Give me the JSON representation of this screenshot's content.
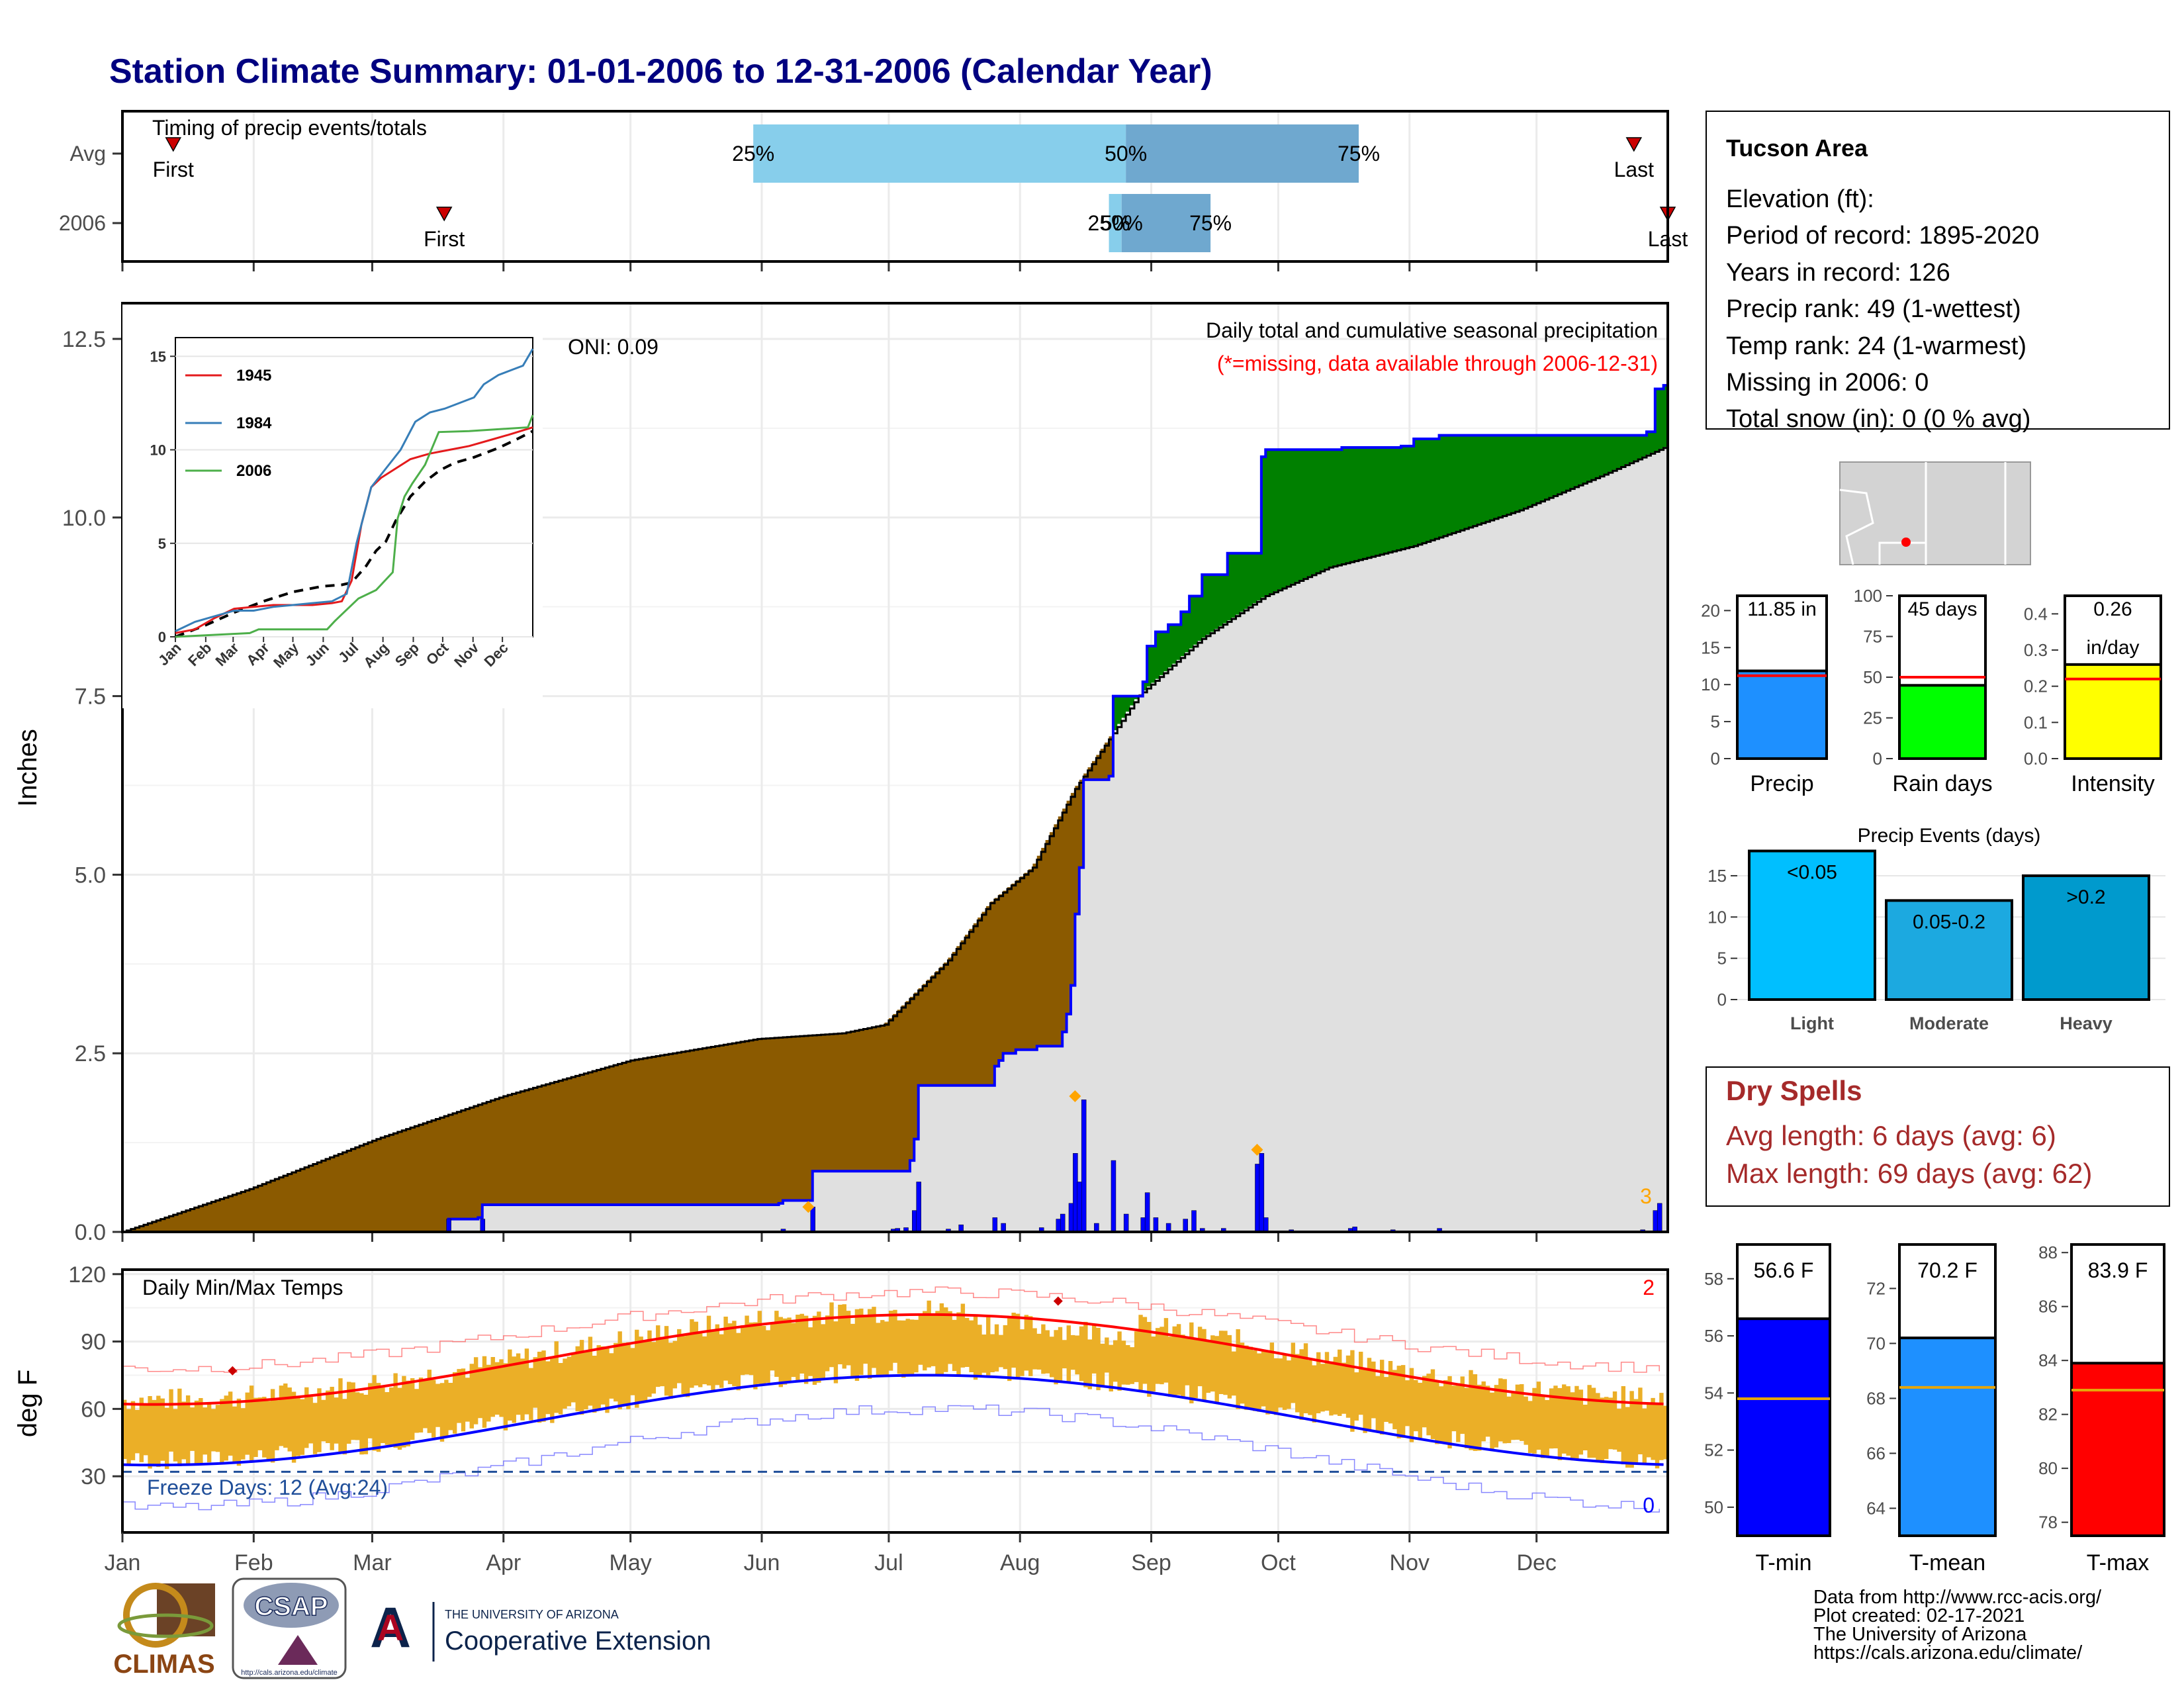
{
  "title": "Station Climate Summary: 01-01-2006 to 12-31-2006 (Calendar Year)",
  "colors": {
    "title": "#000080",
    "drought": "#8B5A00",
    "surplus": "#008000",
    "normal_fill": "#E0E0E0",
    "obs_line": "#0000FF",
    "events": "#FFA500",
    "temp_bar": "#EBAF27",
    "avg_max": "#FF0000",
    "avg_min": "#0000FF",
    "dry_spells": "#A52A2A"
  },
  "months": [
    "Jan",
    "Feb",
    "Mar",
    "Apr",
    "May",
    "Jun",
    "Jul",
    "Aug",
    "Sep",
    "Oct",
    "Nov",
    "Dec"
  ],
  "timing": {
    "label": "Timing of precip events/totals",
    "rows": [
      {
        "name": "Avg",
        "first_label": "First",
        "last_label": "Last",
        "first_doy": 12,
        "last_doy": 357,
        "q25": 149,
        "q50": 237,
        "q75": 292
      },
      {
        "name": "2006",
        "first_label": "First",
        "last_label": "Last",
        "first_doy": 76,
        "last_doy": 365,
        "q25": 233,
        "q50": 236,
        "q75": 257
      }
    ],
    "q_labels": [
      "25%",
      "50%",
      "75%"
    ]
  },
  "precip": {
    "ylabel": "Inches",
    "yticks": [
      "0.0",
      "2.5",
      "5.0",
      "7.5",
      "10.0",
      "12.5"
    ],
    "ymax": 13,
    "title_line1": "Daily total and cumulative seasonal precipitation",
    "title_line2": "(*=missing, data available through 2006-12-31)",
    "oni": "ONI: 0.09",
    "normal_knots": [
      [
        0,
        0
      ],
      [
        30,
        0.6
      ],
      [
        60,
        1.3
      ],
      [
        90,
        1.9
      ],
      [
        120,
        2.4
      ],
      [
        150,
        2.7
      ],
      [
        170,
        2.78
      ],
      [
        180,
        2.9
      ],
      [
        195,
        3.8
      ],
      [
        205,
        4.6
      ],
      [
        215,
        5.1
      ],
      [
        225,
        6.2
      ],
      [
        240,
        7.5
      ],
      [
        255,
        8.3
      ],
      [
        270,
        8.9
      ],
      [
        285,
        9.3
      ],
      [
        305,
        9.6
      ],
      [
        330,
        10.1
      ],
      [
        350,
        10.6
      ],
      [
        365,
        11.0
      ]
    ],
    "obs_steps": [
      [
        76,
        0
      ],
      [
        77,
        0.18
      ],
      [
        84,
        0.2
      ],
      [
        85,
        0.38
      ],
      [
        155,
        0.4
      ],
      [
        156,
        0.44
      ],
      [
        162,
        0.44
      ],
      [
        163,
        0.85
      ],
      [
        185,
        0.85
      ],
      [
        186,
        1.0
      ],
      [
        187,
        1.3
      ],
      [
        188,
        2.05
      ],
      [
        205,
        2.05
      ],
      [
        206,
        2.32
      ],
      [
        207,
        2.4
      ],
      [
        208,
        2.5
      ],
      [
        210,
        2.5
      ],
      [
        211,
        2.55
      ],
      [
        216,
        2.6
      ],
      [
        222,
        2.8
      ],
      [
        223,
        3.05
      ],
      [
        224,
        3.45
      ],
      [
        225,
        4.45
      ],
      [
        226,
        5.1
      ],
      [
        227,
        6.33
      ],
      [
        233,
        6.38
      ],
      [
        234,
        7.5
      ],
      [
        240,
        7.5
      ],
      [
        241,
        7.7
      ],
      [
        242,
        8.2
      ],
      [
        244,
        8.4
      ],
      [
        247,
        8.5
      ],
      [
        250,
        8.68
      ],
      [
        252,
        8.9
      ],
      [
        255,
        9.2
      ],
      [
        260,
        9.2
      ],
      [
        261,
        9.5
      ],
      [
        268,
        9.5
      ],
      [
        269,
        10.85
      ],
      [
        270,
        10.95
      ],
      [
        288,
        10.98
      ],
      [
        300,
        10.98
      ],
      [
        302,
        11.0
      ],
      [
        305,
        11.1
      ],
      [
        311,
        11.15
      ],
      [
        330,
        11.15
      ],
      [
        360,
        11.2
      ],
      [
        362,
        11.8
      ],
      [
        364,
        11.85
      ]
    ],
    "daily": [
      [
        77,
        0.18
      ],
      [
        85,
        0.18
      ],
      [
        156,
        0.04
      ],
      [
        163,
        0.35
      ],
      [
        182,
        0.04
      ],
      [
        183,
        0.05
      ],
      [
        185,
        0.06
      ],
      [
        187,
        0.3
      ],
      [
        188,
        0.7
      ],
      [
        195,
        0.04
      ],
      [
        198,
        0.1
      ],
      [
        206,
        0.2
      ],
      [
        208,
        0.12
      ],
      [
        217,
        0.06
      ],
      [
        221,
        0.18
      ],
      [
        222,
        0.25
      ],
      [
        224,
        0.4
      ],
      [
        225,
        1.1
      ],
      [
        226,
        0.7
      ],
      [
        227,
        1.85
      ],
      [
        230,
        0.12
      ],
      [
        234,
        1.0
      ],
      [
        237,
        0.25
      ],
      [
        241,
        0.2
      ],
      [
        242,
        0.55
      ],
      [
        244,
        0.2
      ],
      [
        247,
        0.12
      ],
      [
        251,
        0.18
      ],
      [
        253,
        0.3
      ],
      [
        255,
        0.05
      ],
      [
        260,
        0.05
      ],
      [
        268,
        0.95
      ],
      [
        269,
        1.1
      ],
      [
        270,
        0.2
      ],
      [
        276,
        0.03
      ],
      [
        290,
        0.05
      ],
      [
        291,
        0.07
      ],
      [
        300,
        0.03
      ],
      [
        311,
        0.05
      ],
      [
        359,
        0.03
      ],
      [
        362,
        0.3
      ],
      [
        363,
        0.4
      ]
    ],
    "event_markers": [
      [
        162,
        0.35
      ],
      [
        225,
        1.9
      ],
      [
        268,
        1.15
      ]
    ],
    "count_label": "3"
  },
  "inset": {
    "years": [
      {
        "name": "1945",
        "color": "#E41A1C",
        "pts": [
          [
            0,
            0.2
          ],
          [
            20,
            0.4
          ],
          [
            40,
            1.0
          ],
          [
            60,
            1.5
          ],
          [
            80,
            1.6
          ],
          [
            100,
            1.7
          ],
          [
            120,
            1.7
          ],
          [
            140,
            1.7
          ],
          [
            160,
            1.8
          ],
          [
            170,
            1.9
          ],
          [
            180,
            3.0
          ],
          [
            190,
            6.0
          ],
          [
            200,
            8.0
          ],
          [
            210,
            8.5
          ],
          [
            225,
            9.0
          ],
          [
            240,
            9.5
          ],
          [
            260,
            9.8
          ],
          [
            280,
            10.0
          ],
          [
            300,
            10.2
          ],
          [
            320,
            10.5
          ],
          [
            340,
            10.8
          ],
          [
            365,
            11.2
          ]
        ]
      },
      {
        "name": "1984",
        "color": "#377EB8",
        "pts": [
          [
            0,
            0.3
          ],
          [
            20,
            0.8
          ],
          [
            40,
            1.1
          ],
          [
            60,
            1.4
          ],
          [
            80,
            1.4
          ],
          [
            100,
            1.6
          ],
          [
            120,
            1.7
          ],
          [
            140,
            1.8
          ],
          [
            160,
            1.9
          ],
          [
            175,
            2.3
          ],
          [
            185,
            5.0
          ],
          [
            200,
            8.0
          ],
          [
            215,
            9.0
          ],
          [
            230,
            10.0
          ],
          [
            245,
            11.5
          ],
          [
            260,
            12.0
          ],
          [
            275,
            12.2
          ],
          [
            290,
            12.5
          ],
          [
            305,
            12.8
          ],
          [
            315,
            13.5
          ],
          [
            330,
            14.0
          ],
          [
            345,
            14.3
          ],
          [
            355,
            14.5
          ],
          [
            365,
            15.4
          ]
        ]
      },
      {
        "name": "2006",
        "color": "#4DAF4A",
        "pts": [
          [
            0,
            0
          ],
          [
            76,
            0.2
          ],
          [
            85,
            0.4
          ],
          [
            155,
            0.4
          ],
          [
            163,
            0.85
          ],
          [
            187,
            2.05
          ],
          [
            205,
            2.5
          ],
          [
            222,
            3.45
          ],
          [
            227,
            6.33
          ],
          [
            234,
            7.5
          ],
          [
            242,
            8.2
          ],
          [
            255,
            9.2
          ],
          [
            269,
            10.95
          ],
          [
            300,
            11.0
          ],
          [
            360,
            11.2
          ],
          [
            365,
            11.85
          ]
        ]
      }
    ],
    "normal_pts": [
      [
        0,
        0
      ],
      [
        30,
        0.6
      ],
      [
        60,
        1.3
      ],
      [
        90,
        1.9
      ],
      [
        120,
        2.4
      ],
      [
        150,
        2.7
      ],
      [
        170,
        2.78
      ],
      [
        180,
        2.9
      ],
      [
        195,
        3.8
      ],
      [
        205,
        4.6
      ],
      [
        215,
        5.1
      ],
      [
        225,
        6.2
      ],
      [
        240,
        7.5
      ],
      [
        255,
        8.3
      ],
      [
        270,
        8.9
      ],
      [
        285,
        9.3
      ],
      [
        305,
        9.6
      ],
      [
        330,
        10.1
      ],
      [
        350,
        10.6
      ],
      [
        365,
        11.0
      ]
    ],
    "yticks": [
      "0",
      "5",
      "10",
      "15"
    ],
    "months": [
      "Jan",
      "Feb",
      "Mar",
      "Apr",
      "May",
      "Jun",
      "Jul",
      "Aug",
      "Sep",
      "Oct",
      "Nov",
      "Dec"
    ]
  },
  "temps": {
    "ylabel": "deg F",
    "label": "Daily Min/Max Temps",
    "yticks": [
      "30",
      "60",
      "90",
      "120"
    ],
    "ylim": [
      5,
      122
    ],
    "freeze_line": 32,
    "freeze_label": "Freeze Days: 12 (Avg:24)",
    "count_hot": "2",
    "count_cold": "0",
    "markers": [
      [
        26,
        77
      ],
      [
        221,
        108
      ]
    ]
  },
  "station": {
    "name": "Tucson Area",
    "lines": [
      "Elevation (ft):",
      "Period of record: 1895-2020",
      "Years in record: 126",
      "Precip rank: 49 (1-wettest)",
      "Temp rank: 24 (1-warmest)",
      "Missing in 2006: 0",
      "Total snow (in): 0 (0 % avg)"
    ]
  },
  "small_bars": [
    {
      "id": "precip",
      "label": "Precip",
      "value": 11.85,
      "value_label": "11.85 in",
      "avg": 11.2,
      "color": "#1E90FF",
      "yticks": [
        "0",
        "5",
        "10",
        "15",
        "20"
      ],
      "ymax": 22
    },
    {
      "id": "rain",
      "label": "Rain days",
      "value": 45,
      "value_label": "45 days",
      "avg": 50,
      "color": "#00FF00",
      "yticks": [
        "0",
        "25",
        "50",
        "75",
        "100"
      ],
      "ymax": 100
    },
    {
      "id": "intensity",
      "label": "Intensity",
      "value": 0.26,
      "value_label": "0.26\nin/day",
      "avg": 0.22,
      "color": "#FFFF00",
      "yticks": [
        "0.0",
        "0.1",
        "0.2",
        "0.3",
        "0.4"
      ],
      "ymax": 0.45
    }
  ],
  "events": {
    "title": "Precip Events (days)",
    "yticks": [
      "0",
      "5",
      "10",
      "15"
    ],
    "ymax": 17,
    "bars": [
      {
        "label": "Light",
        "value": 18,
        "cat": "<0.05",
        "color": "#00BFFF"
      },
      {
        "label": "Moderate",
        "value": 12,
        "cat": "0.05-0.2",
        "color": "#1CA9E0"
      },
      {
        "label": "Heavy",
        "value": 15,
        "cat": ">0.2",
        "color": "#009ACD"
      }
    ]
  },
  "dry_spells": {
    "title": "Dry Spells",
    "line1": "Avg length: 6 days (avg: 6)",
    "line2": "Max length: 69 days (avg: 62)"
  },
  "temp_bars": [
    {
      "label": "T-min",
      "value": 56.6,
      "value_label": "56.6 F",
      "avg": 53.8,
      "color": "#0000FF",
      "yticks": [
        "50",
        "52",
        "54",
        "56",
        "58"
      ],
      "ymin": 49,
      "ymax": 59.2
    },
    {
      "label": "T-mean",
      "value": 70.2,
      "value_label": "70.2 F",
      "avg": 68.4,
      "color": "#1E90FF",
      "yticks": [
        "64",
        "66",
        "68",
        "70",
        "72"
      ],
      "ymin": 63,
      "ymax": 73.6
    },
    {
      "label": "T-max",
      "value": 83.9,
      "value_label": "83.9 F",
      "avg": 82.9,
      "color": "#FF0000",
      "yticks": [
        "78",
        "80",
        "82",
        "84",
        "86",
        "88"
      ],
      "ymin": 77.5,
      "ymax": 88.3
    }
  ],
  "footer": {
    "lines": [
      "Data from http://www.rcc-acis.org/",
      "Plot created: 02-17-2021",
      "The University of Arizona",
      "https://cals.arizona.edu/climate/"
    ],
    "logos": {
      "climas": "CLIMAS",
      "csap": "CSAP",
      "csap_url": "http://cals.arizona.edu/climate",
      "ua_top": "THE UNIVERSITY OF ARIZONA",
      "ua_bottom": "Cooperative Extension"
    }
  }
}
